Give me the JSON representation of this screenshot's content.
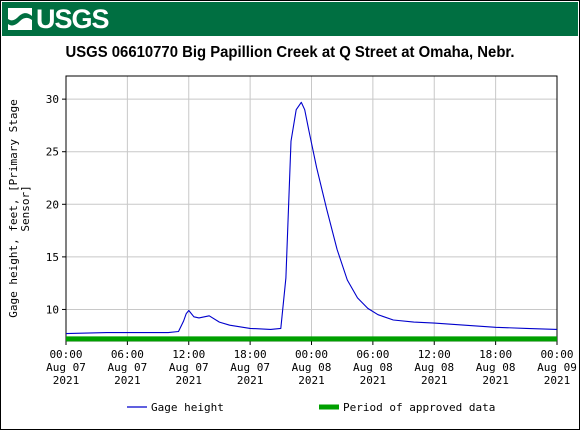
{
  "header": {
    "agency_logo_text": "USGS",
    "banner_color": "#006f41"
  },
  "chart_data": {
    "type": "line",
    "title": "USGS 06610770 Big Papillion Creek at Q Street at Omaha, Nebr.",
    "ylabel": "Gage height, feet, [Primary Stage Sensor]",
    "xlabel": "",
    "ylim": [
      7.0,
      32.2
    ],
    "yticks": [
      10,
      15,
      20,
      25,
      30
    ],
    "xlim": [
      "2021-08-07T00:00",
      "2021-08-09T00:00"
    ],
    "xticks": [
      {
        "time": "2021-08-07T00:00",
        "label": [
          "00:00",
          "Aug 07",
          "2021"
        ]
      },
      {
        "time": "2021-08-07T06:00",
        "label": [
          "06:00",
          "Aug 07",
          "2021"
        ]
      },
      {
        "time": "2021-08-07T12:00",
        "label": [
          "12:00",
          "Aug 07",
          "2021"
        ]
      },
      {
        "time": "2021-08-07T18:00",
        "label": [
          "18:00",
          "Aug 07",
          "2021"
        ]
      },
      {
        "time": "2021-08-08T00:00",
        "label": [
          "00:00",
          "Aug 08",
          "2021"
        ]
      },
      {
        "time": "2021-08-08T06:00",
        "label": [
          "06:00",
          "Aug 08",
          "2021"
        ]
      },
      {
        "time": "2021-08-08T12:00",
        "label": [
          "12:00",
          "Aug 08",
          "2021"
        ]
      },
      {
        "time": "2021-08-08T18:00",
        "label": [
          "18:00",
          "Aug 08",
          "2021"
        ]
      },
      {
        "time": "2021-08-09T00:00",
        "label": [
          "00:00",
          "Aug 09",
          "2021"
        ]
      }
    ],
    "grid": true,
    "legend_position": "bottom",
    "series": [
      {
        "name": "Gage height",
        "color": "#0000cc",
        "x": [
          "2021-08-07T00:00",
          "2021-08-07T04:00",
          "2021-08-07T06:00",
          "2021-08-07T08:00",
          "2021-08-07T10:00",
          "2021-08-07T11:00",
          "2021-08-07T11:30",
          "2021-08-07T11:45",
          "2021-08-07T12:00",
          "2021-08-07T12:30",
          "2021-08-07T13:00",
          "2021-08-07T14:00",
          "2021-08-07T15:00",
          "2021-08-07T16:00",
          "2021-08-07T18:00",
          "2021-08-07T20:00",
          "2021-08-07T21:00",
          "2021-08-07T21:30",
          "2021-08-07T22:00",
          "2021-08-07T22:30",
          "2021-08-07T23:00",
          "2021-08-07T23:20",
          "2021-08-07T23:45",
          "2021-08-08T00:30",
          "2021-08-08T01:30",
          "2021-08-08T02:30",
          "2021-08-08T03:30",
          "2021-08-08T04:30",
          "2021-08-08T05:30",
          "2021-08-08T06:30",
          "2021-08-08T08:00",
          "2021-08-08T10:00",
          "2021-08-08T12:00",
          "2021-08-08T15:00",
          "2021-08-08T18:00",
          "2021-08-08T21:00",
          "2021-08-09T00:00"
        ],
        "y": [
          7.7,
          7.8,
          7.8,
          7.8,
          7.8,
          7.9,
          8.9,
          9.6,
          9.9,
          9.3,
          9.2,
          9.4,
          8.8,
          8.5,
          8.2,
          8.1,
          8.2,
          13.0,
          26.0,
          29.0,
          29.7,
          29.0,
          27.0,
          23.5,
          19.5,
          15.7,
          12.8,
          11.1,
          10.1,
          9.5,
          9.0,
          8.8,
          8.7,
          8.5,
          8.3,
          8.2,
          8.1
        ]
      },
      {
        "name": "Period of approved data",
        "color": "#00a000",
        "x": [
          "2021-08-07T00:00",
          "2021-08-09T00:00"
        ],
        "y": [
          7.2,
          7.2
        ]
      }
    ]
  }
}
